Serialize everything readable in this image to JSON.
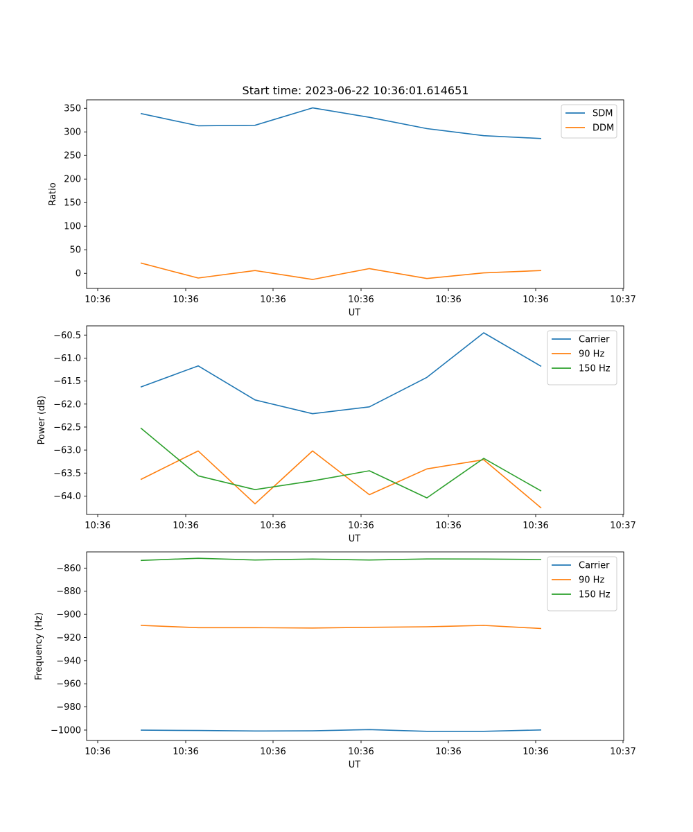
{
  "figure": {
    "title": "Start time: 2023-06-22 10:36:01.614651"
  },
  "chart_data": [
    {
      "type": "line",
      "xlabel": "UT",
      "ylabel": "Ratio",
      "x_tick_labels": [
        "10:36",
        "10:36",
        "10:36",
        "10:36",
        "10:36",
        "10:36",
        "10:37"
      ],
      "ylim": [
        -32,
        368
      ],
      "yticks": [
        0,
        50,
        100,
        150,
        200,
        250,
        300,
        350
      ],
      "y_tick_labels": [
        "0",
        "50",
        "100",
        "150",
        "200",
        "250",
        "300",
        "350"
      ],
      "grid": false,
      "legend_position": "upper right",
      "series": [
        {
          "name": "SDM",
          "color": "#1f77b4",
          "values": [
            339,
            313,
            314,
            351,
            331,
            307,
            292,
            286
          ]
        },
        {
          "name": "DDM",
          "color": "#ff7f0e",
          "values": [
            22,
            -10,
            6,
            -13,
            10,
            -11,
            1,
            6
          ]
        }
      ]
    },
    {
      "type": "line",
      "xlabel": "UT",
      "ylabel": "Power (dB)",
      "x_tick_labels": [
        "10:36",
        "10:36",
        "10:36",
        "10:36",
        "10:36",
        "10:36",
        "10:37"
      ],
      "ylim": [
        -64.4,
        -60.3
      ],
      "yticks": [
        -64.0,
        -63.5,
        -63.0,
        -62.5,
        -62.0,
        -61.5,
        -61.0,
        -60.5
      ],
      "y_tick_labels": [
        "−64.0",
        "−63.5",
        "−63.0",
        "−62.5",
        "−62.0",
        "−61.5",
        "−61.0",
        "−60.5"
      ],
      "grid": false,
      "legend_position": "upper right",
      "series": [
        {
          "name": "Carrier",
          "color": "#1f77b4",
          "values": [
            -61.63,
            -61.17,
            -61.91,
            -62.21,
            -62.06,
            -61.42,
            -60.45,
            -61.18
          ]
        },
        {
          "name": "90 Hz",
          "color": "#ff7f0e",
          "values": [
            -63.64,
            -63.02,
            -64.17,
            -63.02,
            -63.97,
            -63.41,
            -63.21,
            -64.26
          ]
        },
        {
          "name": "150 Hz",
          "color": "#2ca02c",
          "values": [
            -62.52,
            -63.56,
            -63.86,
            -63.67,
            -63.45,
            -64.04,
            -63.18,
            -63.89
          ]
        }
      ]
    },
    {
      "type": "line",
      "xlabel": "UT",
      "ylabel": "Frequency (Hz)",
      "x_tick_labels": [
        "10:36",
        "10:36",
        "10:36",
        "10:36",
        "10:36",
        "10:36",
        "10:37"
      ],
      "ylim": [
        -1009,
        -846
      ],
      "yticks": [
        -1000,
        -980,
        -960,
        -940,
        -920,
        -900,
        -880,
        -860
      ],
      "y_tick_labels": [
        "−1000",
        "−980",
        "−960",
        "−940",
        "−920",
        "−900",
        "−880",
        "−860"
      ],
      "grid": false,
      "legend_position": "upper right",
      "series": [
        {
          "name": "Carrier",
          "color": "#1f77b4",
          "values": [
            -1000.1,
            -1000.4,
            -1000.8,
            -1000.7,
            -999.6,
            -1001.1,
            -1001.1,
            -999.9
          ]
        },
        {
          "name": "90 Hz",
          "color": "#ff7f0e",
          "values": [
            -909.5,
            -911.5,
            -911.5,
            -911.8,
            -911.2,
            -910.7,
            -909.5,
            -912.2
          ]
        },
        {
          "name": "150 Hz",
          "color": "#2ca02c",
          "values": [
            -853.4,
            -851.5,
            -853.0,
            -852.2,
            -853.0,
            -852.1,
            -852.2,
            -852.6
          ]
        }
      ]
    }
  ]
}
